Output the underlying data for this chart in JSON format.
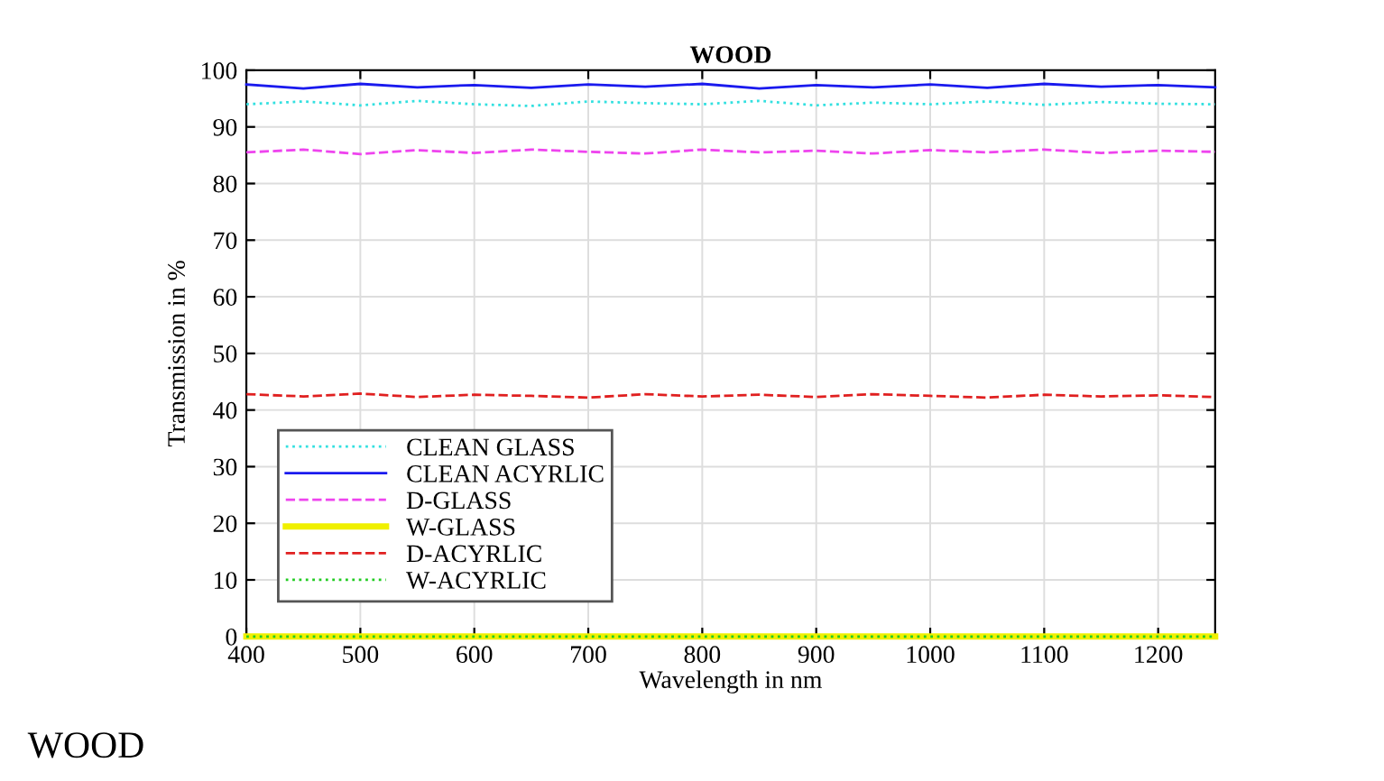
{
  "chart_data": {
    "type": "line",
    "title": "WOOD",
    "xlabel": "Wavelength in nm",
    "ylabel": "Transmission in %",
    "x": [
      400,
      450,
      500,
      550,
      600,
      650,
      700,
      750,
      800,
      850,
      900,
      950,
      1000,
      1050,
      1100,
      1150,
      1200,
      1250
    ],
    "xlim": [
      400,
      1250
    ],
    "xticks": [
      400,
      500,
      600,
      700,
      800,
      900,
      1000,
      1100,
      1200
    ],
    "ylim": [
      0,
      100
    ],
    "yticks": [
      0,
      10,
      20,
      30,
      40,
      50,
      60,
      70,
      80,
      90,
      100
    ],
    "grid": true,
    "legend": "bottom left",
    "annotations": [
      "WOOD"
    ],
    "series": [
      {
        "name": "CLEAN GLASS",
        "color": "#33e0e0",
        "line_style": "dotted",
        "values": [
          94,
          94.5,
          93.8,
          94.6,
          94,
          93.7,
          94.5,
          94.2,
          94,
          94.6,
          93.8,
          94.3,
          94,
          94.5,
          93.9,
          94.4,
          94.1,
          94
        ]
      },
      {
        "name": "CLEAN ACYRLIC",
        "color": "#1a1aee",
        "line_style": "solid",
        "values": [
          97.5,
          96.8,
          97.6,
          97,
          97.4,
          96.9,
          97.5,
          97.1,
          97.6,
          96.8,
          97.4,
          97,
          97.5,
          96.9,
          97.6,
          97.1,
          97.4,
          97
        ]
      },
      {
        "name": "D-GLASS",
        "color": "#ee44ee",
        "line_style": "dashed",
        "values": [
          85.5,
          86,
          85.2,
          85.9,
          85.4,
          86,
          85.6,
          85.3,
          86,
          85.5,
          85.8,
          85.3,
          85.9,
          85.5,
          86,
          85.4,
          85.8,
          85.6
        ]
      },
      {
        "name": "W-GLASS",
        "color": "#f0f000",
        "line_style": "solid",
        "values": [
          0,
          0,
          0,
          0,
          0,
          0,
          0,
          0,
          0,
          0,
          0,
          0,
          0,
          0,
          0,
          0,
          0,
          0
        ]
      },
      {
        "name": "D-ACYRLIC",
        "color": "#e02020",
        "line_style": "dashed",
        "values": [
          42.8,
          42.4,
          42.9,
          42.3,
          42.7,
          42.5,
          42.2,
          42.8,
          42.4,
          42.7,
          42.3,
          42.8,
          42.5,
          42.2,
          42.7,
          42.4,
          42.6,
          42.3
        ]
      },
      {
        "name": "W-ACYRLIC",
        "color": "#22cc22",
        "line_style": "dotted",
        "values": [
          0,
          0,
          0,
          0,
          0,
          0,
          0,
          0,
          0,
          0,
          0,
          0,
          0,
          0,
          0,
          0,
          0,
          0
        ]
      }
    ]
  }
}
